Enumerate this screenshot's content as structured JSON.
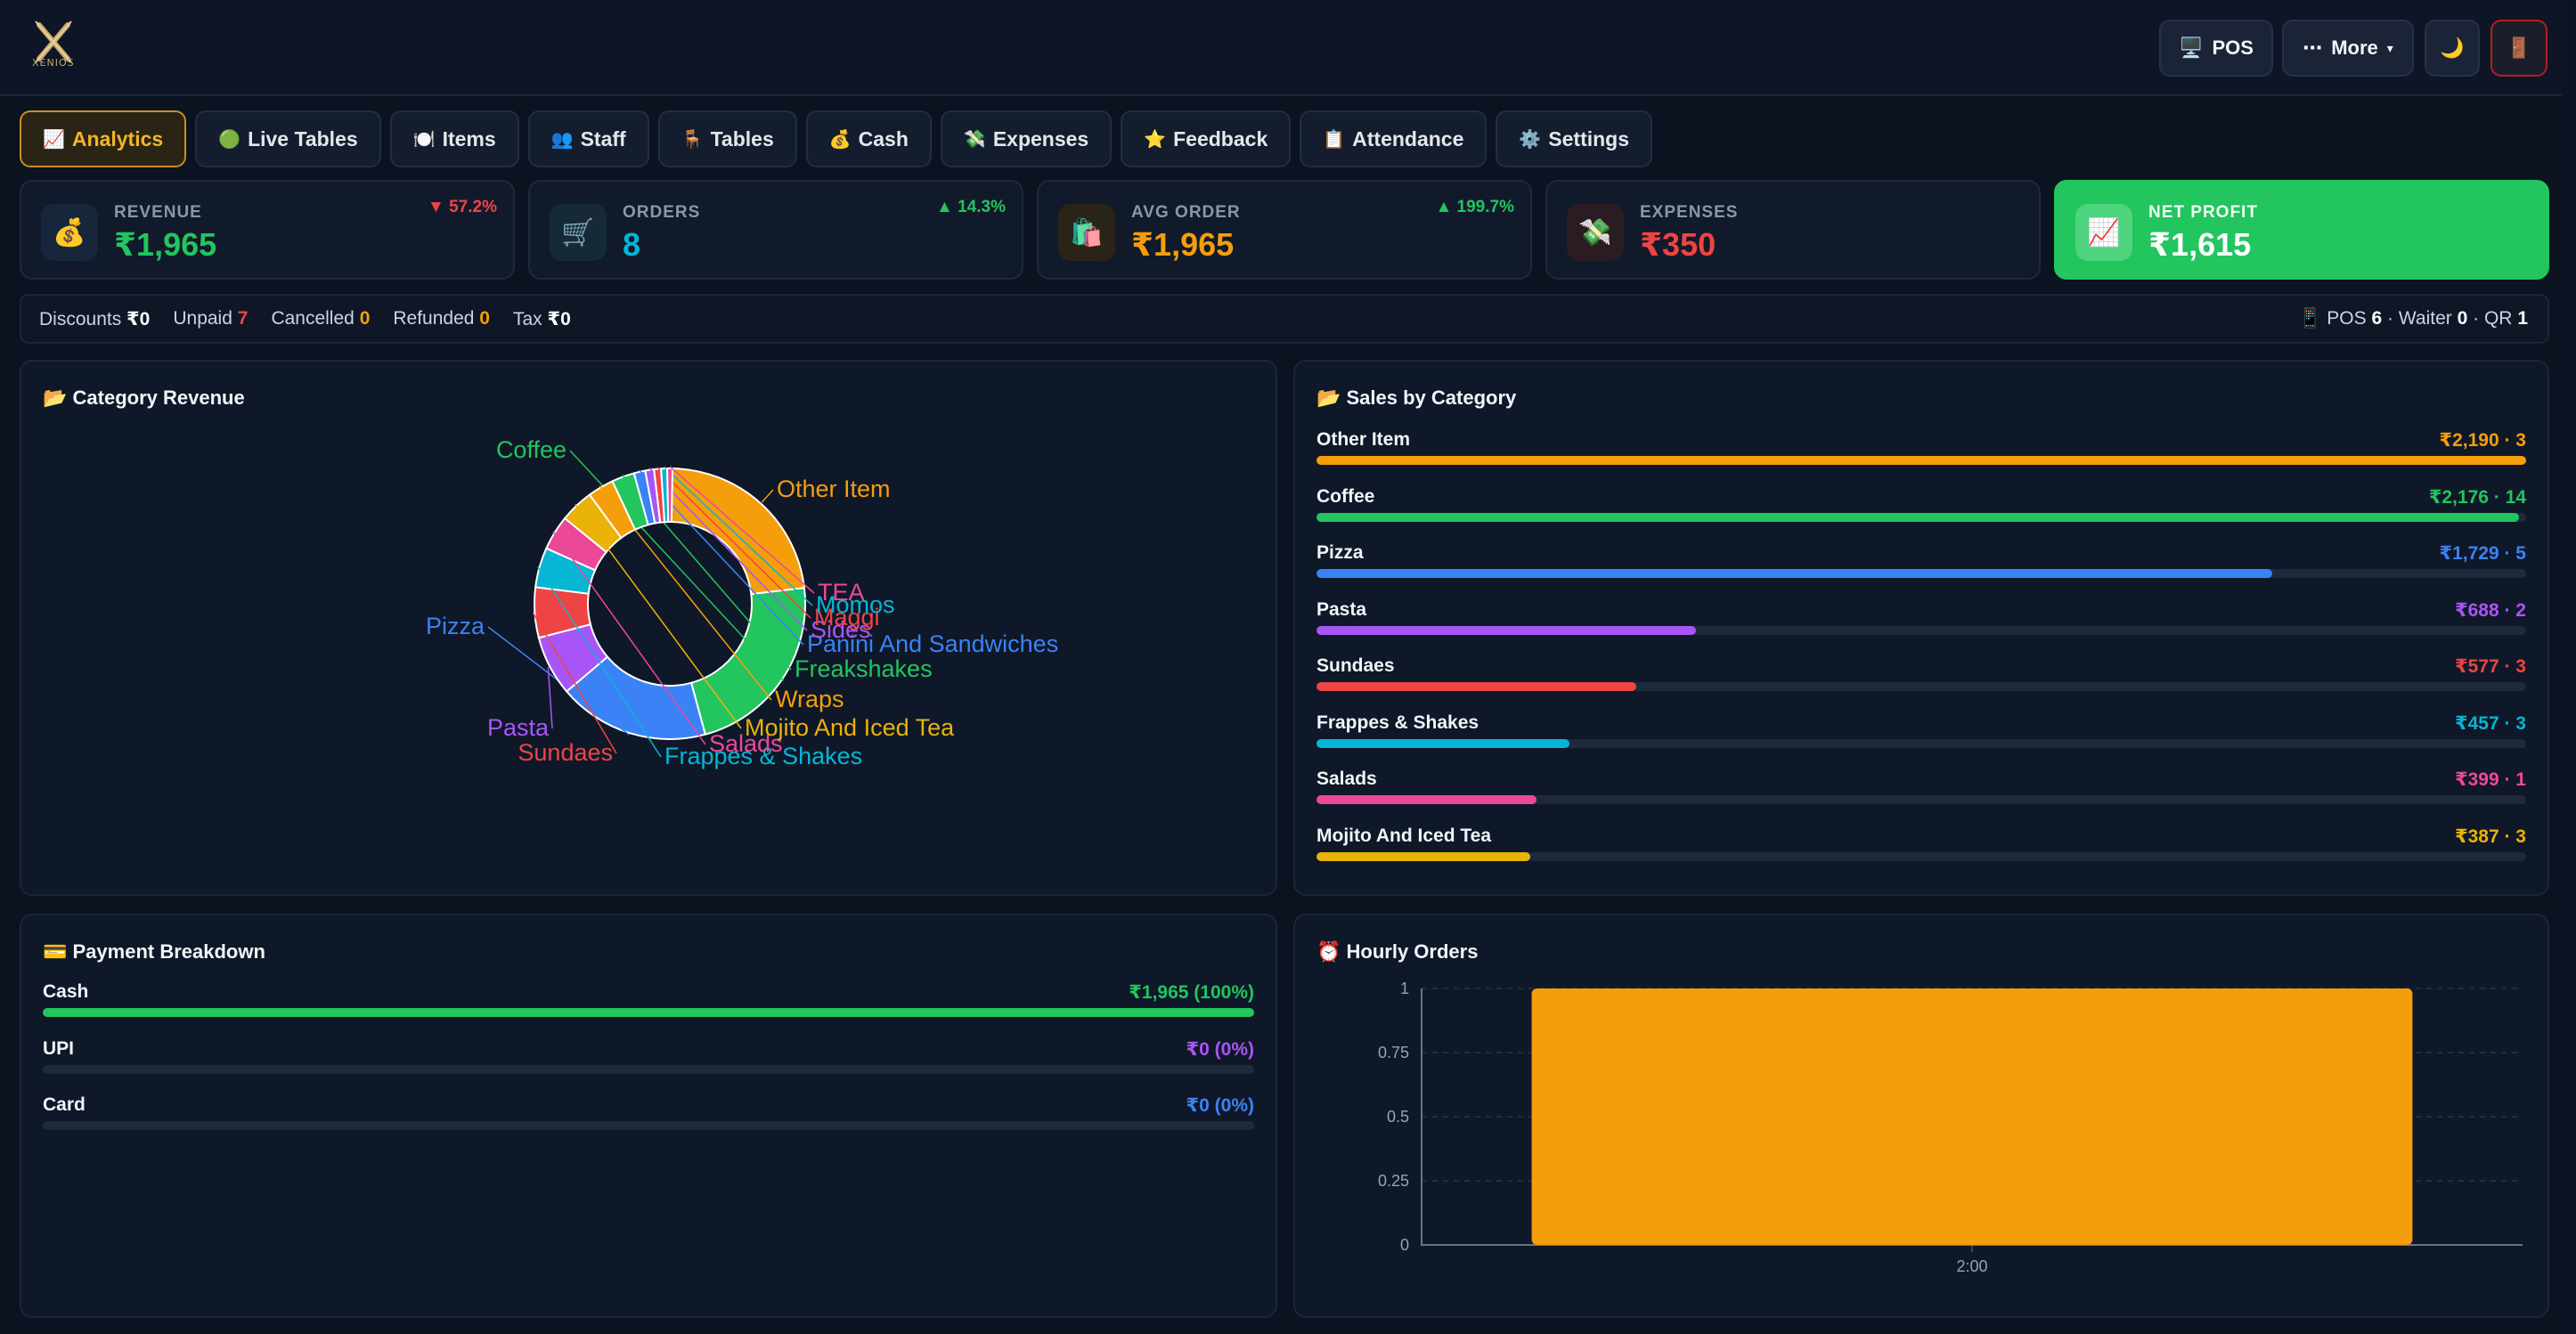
{
  "topbar": {
    "logo_text": "XENIOS",
    "pos_label": "POS",
    "more_label": "More",
    "icons": {
      "pos": "desktop-icon",
      "more": "ellipsis-icon",
      "theme": "moon-icon",
      "logout": "door-icon"
    }
  },
  "tabs": [
    {
      "icon": "📈",
      "label": "Analytics",
      "active": true
    },
    {
      "icon": "🟢",
      "label": "Live Tables"
    },
    {
      "icon": "🍽️",
      "label": "Items"
    },
    {
      "icon": "👥",
      "label": "Staff"
    },
    {
      "icon": "🪑",
      "label": "Tables"
    },
    {
      "icon": "💰",
      "label": "Cash"
    },
    {
      "icon": "💸",
      "label": "Expenses"
    },
    {
      "icon": "⭐",
      "label": "Feedback"
    },
    {
      "icon": "📋",
      "label": "Attendance"
    },
    {
      "icon": "⚙️",
      "label": "Settings"
    }
  ],
  "kpis": {
    "revenue": {
      "label": "REVENUE",
      "value": "₹1,965",
      "delta": "▼ 57.2%",
      "color": "#22c55e",
      "delta_color": "#ef4444",
      "icon": "💰"
    },
    "orders": {
      "label": "ORDERS",
      "value": "8",
      "delta": "▲ 14.3%",
      "color": "#06b6d4",
      "delta_color": "#22c55e",
      "icon": "🛒"
    },
    "avg_order": {
      "label": "AVG ORDER",
      "value": "₹1,965",
      "delta": "▲ 199.7%",
      "color": "#f59e0b",
      "delta_color": "#22c55e",
      "icon": "🛍️"
    },
    "expenses": {
      "label": "EXPENSES",
      "value": "₹350",
      "color": "#ef4444",
      "icon": "💸"
    },
    "net_profit": {
      "label": "NET PROFIT",
      "value": "₹1,615",
      "icon": "📈"
    }
  },
  "summary": {
    "discounts_label": "Discounts",
    "discounts": "₹0",
    "unpaid_label": "Unpaid",
    "unpaid": "7",
    "cancelled_label": "Cancelled",
    "cancelled": "0",
    "refunded_label": "Refunded",
    "refunded": "0",
    "tax_label": "Tax",
    "tax": "₹0",
    "pos_label": "POS",
    "pos": "6",
    "waiter_label": "Waiter",
    "waiter": "0",
    "qr_label": "QR",
    "qr": "1"
  },
  "category_revenue": {
    "title": "📂 Category Revenue",
    "chart_data": {
      "type": "pie",
      "categories": [
        "Other Item",
        "Coffee",
        "Pizza",
        "Pasta",
        "Sundaes",
        "Frappes & Shakes",
        "Salads",
        "Mojito And Iced Tea",
        "Wraps",
        "Freakshakes",
        "Panini And Sandwiches",
        "Sides",
        "Maggi",
        "Momos",
        "TEA"
      ],
      "values": [
        2190,
        2176,
        1729,
        688,
        577,
        457,
        399,
        387,
        300,
        260,
        130,
        100,
        80,
        70,
        60
      ],
      "colors": [
        "#f59e0b",
        "#22c55e",
        "#3b82f6",
        "#a855f7",
        "#ef4444",
        "#06b6d4",
        "#ec4899",
        "#eab308",
        "#f59e0b",
        "#22c55e",
        "#3b82f6",
        "#a855f7",
        "#ef4444",
        "#06b6d4",
        "#ec4899"
      ]
    }
  },
  "sales_by_category": {
    "title": "📂 Sales by Category",
    "rows": [
      {
        "name": "Other Item",
        "value": "₹2,190 · 3",
        "fraction": 1.0,
        "color": "#f59e0b"
      },
      {
        "name": "Coffee",
        "value": "₹2,176 · 14",
        "fraction": 0.994,
        "color": "#22c55e"
      },
      {
        "name": "Pizza",
        "value": "₹1,729 · 5",
        "fraction": 0.79,
        "color": "#3b82f6"
      },
      {
        "name": "Pasta",
        "value": "₹688 · 2",
        "fraction": 0.314,
        "color": "#a855f7"
      },
      {
        "name": "Sundaes",
        "value": "₹577 · 3",
        "fraction": 0.264,
        "color": "#ef4444"
      },
      {
        "name": "Frappes & Shakes",
        "value": "₹457 · 3",
        "fraction": 0.209,
        "color": "#06b6d4"
      },
      {
        "name": "Salads",
        "value": "₹399 · 1",
        "fraction": 0.182,
        "color": "#ec4899"
      },
      {
        "name": "Mojito And Iced Tea",
        "value": "₹387 · 3",
        "fraction": 0.177,
        "color": "#eab308"
      }
    ]
  },
  "payment_breakdown": {
    "title": "💳 Payment Breakdown",
    "rows": [
      {
        "name": "Cash",
        "value": "₹1,965 (100%)",
        "fraction": 1.0,
        "color": "#22c55e"
      },
      {
        "name": "UPI",
        "value": "₹0 (0%)",
        "fraction": 0,
        "color": "#a855f7"
      },
      {
        "name": "Card",
        "value": "₹0 (0%)",
        "fraction": 0,
        "color": "#3b82f6"
      }
    ]
  },
  "hourly_orders": {
    "title": "⏰ Hourly Orders",
    "chart_data": {
      "type": "bar",
      "categories": [
        "2:00"
      ],
      "values": [
        1
      ],
      "ylim": [
        0,
        1
      ],
      "yticks": [
        "0",
        "0.25",
        "0.5",
        "0.75",
        "1"
      ],
      "color": "#f59e0b",
      "grid": true
    }
  }
}
